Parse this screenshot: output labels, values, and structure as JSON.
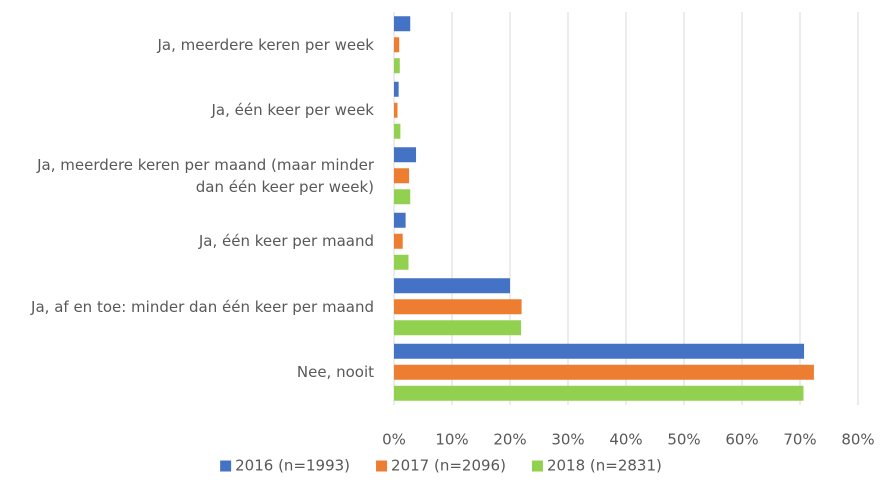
{
  "chart_data": {
    "type": "barh",
    "categories": [
      "Ja, meerdere keren per week",
      "Ja, één keer per week",
      "Ja, meerdere keren per maand (maar minder dan één keer per week)",
      "Ja, één keer per maand",
      "Ja, af en toe: minder dan één keer per maand",
      "Nee, nooit"
    ],
    "series": [
      {
        "name": "2016 (n=1993)",
        "color": "#4472c4",
        "values": [
          2.8,
          0.8,
          3.8,
          2.0,
          20.0,
          70.7
        ]
      },
      {
        "name": "2017 (n=2096)",
        "color": "#ed7d31",
        "values": [
          0.9,
          0.6,
          2.6,
          1.5,
          22.0,
          72.4
        ]
      },
      {
        "name": "2018 (n=2831)",
        "color": "#92d050",
        "values": [
          1.0,
          1.1,
          2.8,
          2.5,
          21.9,
          70.6
        ]
      }
    ],
    "xlim": [
      0,
      80
    ],
    "xticks": [
      {
        "value": 0,
        "label": "0%"
      },
      {
        "value": 10,
        "label": "10%"
      },
      {
        "value": 20,
        "label": "20%"
      },
      {
        "value": 30,
        "label": "30%"
      },
      {
        "value": 40,
        "label": "40%"
      },
      {
        "value": 50,
        "label": "50%"
      },
      {
        "value": 60,
        "label": "60%"
      },
      {
        "value": 70,
        "label": "70%"
      },
      {
        "value": 80,
        "label": "80%"
      }
    ],
    "grid": true,
    "legend": "bottom"
  }
}
